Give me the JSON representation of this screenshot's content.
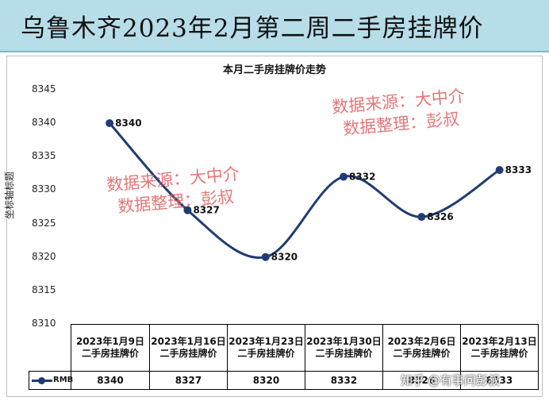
{
  "banner": {
    "title": "乌鲁木齐2023年2月第二周二手房挂牌价"
  },
  "watermarks": {
    "line1": "数据来源：大中介",
    "line2": "数据整理：彭叔"
  },
  "credit": "知乎 @有事问彭叔",
  "chart_data": {
    "type": "line",
    "title": "本月二手房挂牌价走势",
    "ylabel": "坐标轴标题",
    "xlabel": "",
    "ylim": [
      8310,
      8345
    ],
    "yticks": [
      8310,
      8315,
      8320,
      8325,
      8330,
      8335,
      8340,
      8345
    ],
    "categories": [
      "2023年1月9日二手房挂牌价",
      "2023年1月16日二手房挂牌价",
      "2023年1月23日二手房挂牌价",
      "2023年1月30日二手房挂牌价",
      "2023年2月6日二手房挂牌价",
      "2023年2月13日二手房挂牌价"
    ],
    "series": [
      {
        "name": "RMB",
        "values": [
          8340,
          8327,
          8320,
          8332,
          8326,
          8333
        ],
        "color": "#1f3d73"
      }
    ],
    "data_labels": true,
    "grid": false,
    "legend": "in data table"
  }
}
